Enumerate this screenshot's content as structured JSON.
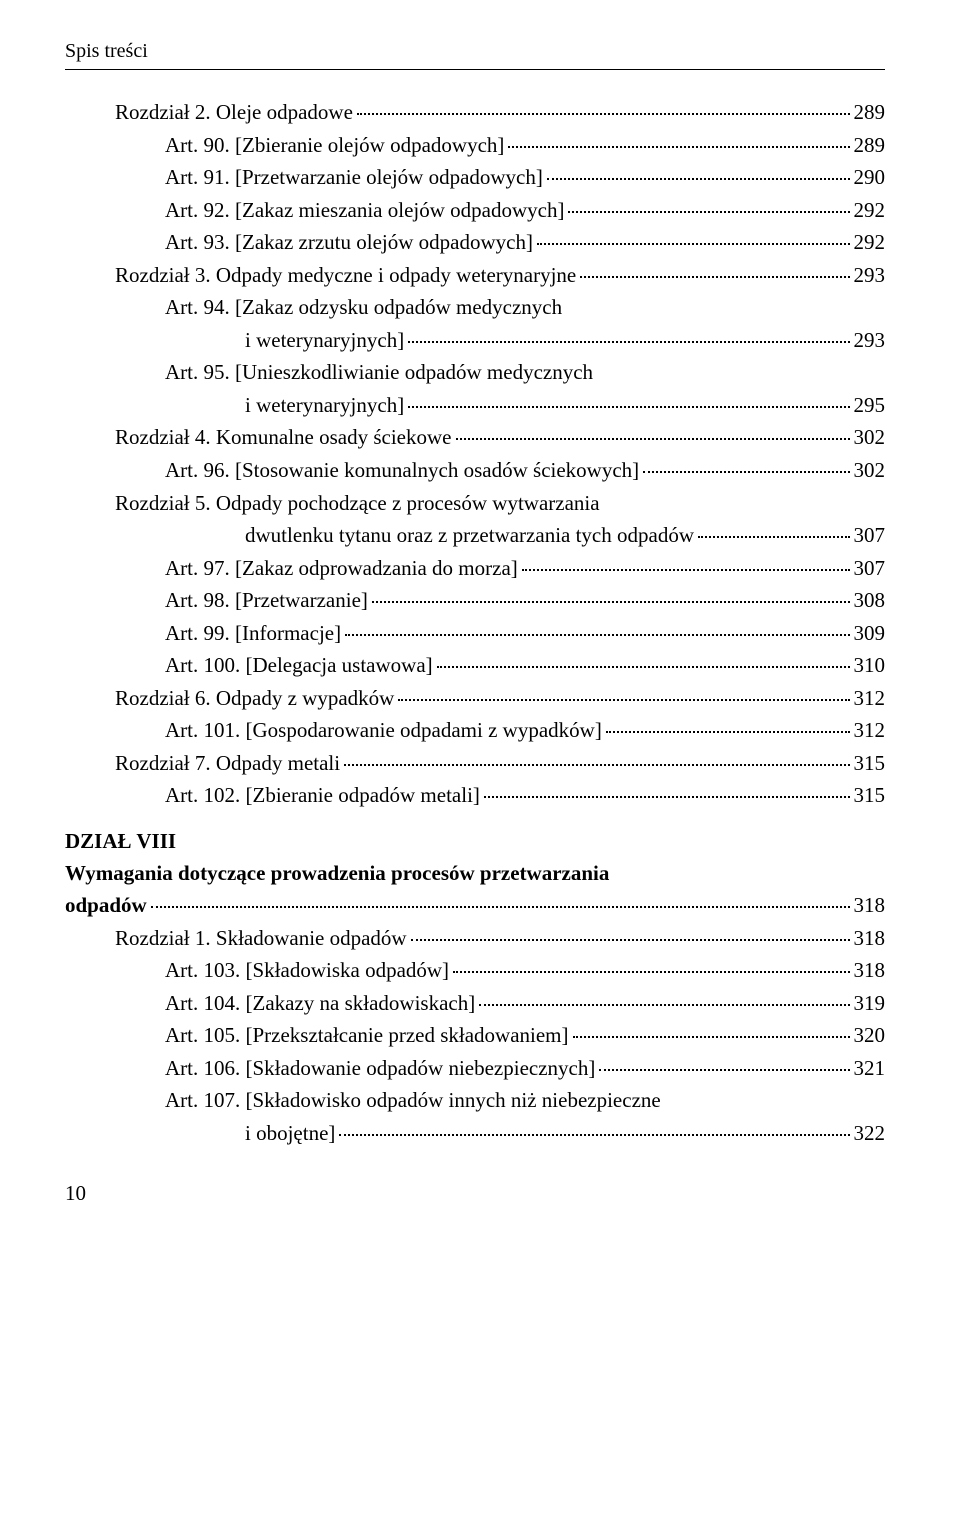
{
  "header": "Spis treści",
  "section8": {
    "title": "DZIAŁ VIII",
    "subtitle_line1": "Wymagania dotyczące prowadzenia procesów przetwarzania",
    "subtitle_line2": "odpadów",
    "page": "318"
  },
  "entries": [
    {
      "indent": 1,
      "text": "Rozdział 2. Oleje odpadowe",
      "page": "289"
    },
    {
      "indent": 2,
      "text": "Art. 90. [Zbieranie olejów odpadowych]",
      "page": "289"
    },
    {
      "indent": 2,
      "text": "Art. 91. [Przetwarzanie olejów odpadowych]",
      "page": "290"
    },
    {
      "indent": 2,
      "text": "Art. 92. [Zakaz mieszania olejów odpadowych]",
      "page": "292"
    },
    {
      "indent": 2,
      "text": "Art. 93. [Zakaz zrzutu olejów odpadowych]",
      "page": "292"
    },
    {
      "indent": 1,
      "text": "Rozdział 3. Odpady medyczne i odpady weterynaryjne",
      "page": "293"
    },
    {
      "indent": 2,
      "text": "Art. 94. [Zakaz odzysku odpadów medycznych",
      "cont": true
    },
    {
      "indent": 3,
      "text": "i weterynaryjnych]",
      "page": "293"
    },
    {
      "indent": 2,
      "text": "Art. 95. [Unieszkodliwianie odpadów medycznych",
      "cont": true
    },
    {
      "indent": 3,
      "text": "i weterynaryjnych]",
      "page": "295"
    },
    {
      "indent": 1,
      "text": "Rozdział 4. Komunalne osady ściekowe",
      "page": "302"
    },
    {
      "indent": 2,
      "text": "Art. 96. [Stosowanie komunalnych osadów ściekowych]",
      "page": "302"
    },
    {
      "indent": 1,
      "text": "Rozdział 5. Odpady pochodzące z procesów wytwarzania",
      "cont": true
    },
    {
      "indent": 3,
      "text": "dwutlenku tytanu oraz z przetwarzania tych odpadów",
      "page": "307"
    },
    {
      "indent": 2,
      "text": "Art. 97. [Zakaz odprowadzania do morza]",
      "page": "307"
    },
    {
      "indent": 2,
      "text": "Art. 98. [Przetwarzanie]",
      "page": "308"
    },
    {
      "indent": 2,
      "text": "Art. 99. [Informacje]",
      "page": "309"
    },
    {
      "indent": 2,
      "text": "Art. 100. [Delegacja ustawowa]",
      "page": "310"
    },
    {
      "indent": 1,
      "text": "Rozdział 6. Odpady z wypadków",
      "page": "312"
    },
    {
      "indent": 2,
      "text": "Art. 101. [Gospodarowanie odpadami z wypadków]",
      "page": "312"
    },
    {
      "indent": 1,
      "text": "Rozdział 7. Odpady metali",
      "page": "315"
    },
    {
      "indent": 2,
      "text": "Art. 102. [Zbieranie odpadów metali]",
      "page": "315"
    }
  ],
  "entries2": [
    {
      "indent": 1,
      "text": "Rozdział 1. Składowanie odpadów",
      "page": "318"
    },
    {
      "indent": 2,
      "text": "Art. 103. [Składowiska odpadów]",
      "page": "318"
    },
    {
      "indent": 2,
      "text": "Art. 104. [Zakazy na składowiskach]",
      "page": "319"
    },
    {
      "indent": 2,
      "text": "Art. 105. [Przekształcanie przed składowaniem]",
      "page": "320"
    },
    {
      "indent": 2,
      "text": "Art. 106. [Składowanie odpadów niebezpiecznych]",
      "page": "321"
    },
    {
      "indent": 2,
      "text": "Art. 107. [Składowisko odpadów innych niż niebezpieczne",
      "cont": true
    },
    {
      "indent": 3,
      "text": "i obojętne]",
      "page": "322"
    }
  ],
  "pageNumber": "10"
}
